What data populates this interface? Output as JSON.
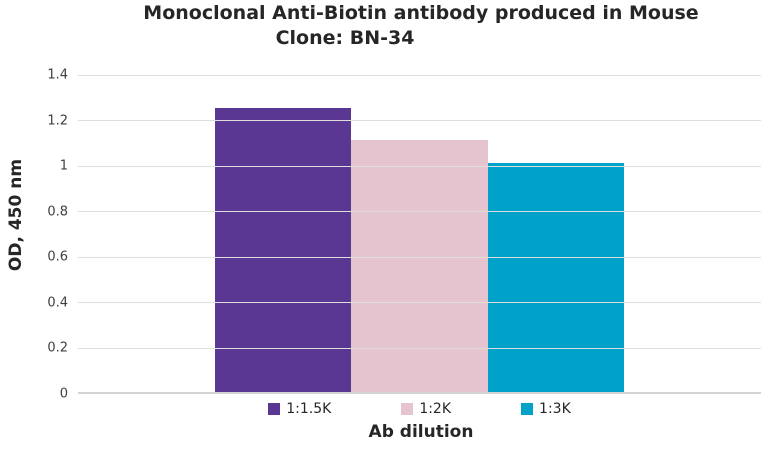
{
  "chart_data": {
    "type": "bar",
    "title": "Monoclonal Anti-Biotin antibody produced in Mouse",
    "subtitle": "Clone: BN-34",
    "xlabel": "Ab dilution",
    "ylabel": "OD, 450 nm",
    "ylim": [
      0,
      1.4
    ],
    "ytick_values": [
      0,
      0.2,
      0.4,
      0.6,
      0.8,
      1,
      1.2,
      1.4
    ],
    "ytick_labels": [
      "0",
      "0.2",
      "0.4",
      "0.6",
      "0.8",
      "1",
      "1.2",
      "1.4"
    ],
    "grid": true,
    "legend_position": "bottom",
    "categories": [
      "1:1.5K",
      "1:2K",
      "1:3K"
    ],
    "series": [
      {
        "name": "1:1.5K",
        "value": 1.25,
        "color": "#5B3794"
      },
      {
        "name": "1:2K",
        "value": 1.11,
        "color": "#E5C3CF"
      },
      {
        "name": "1:3K",
        "value": 1.01,
        "color": "#00A2CA"
      }
    ],
    "background_color": "#FFFFFF",
    "gridline_color": "#DEDEDE",
    "axisline_color": "#D2D2D2"
  }
}
